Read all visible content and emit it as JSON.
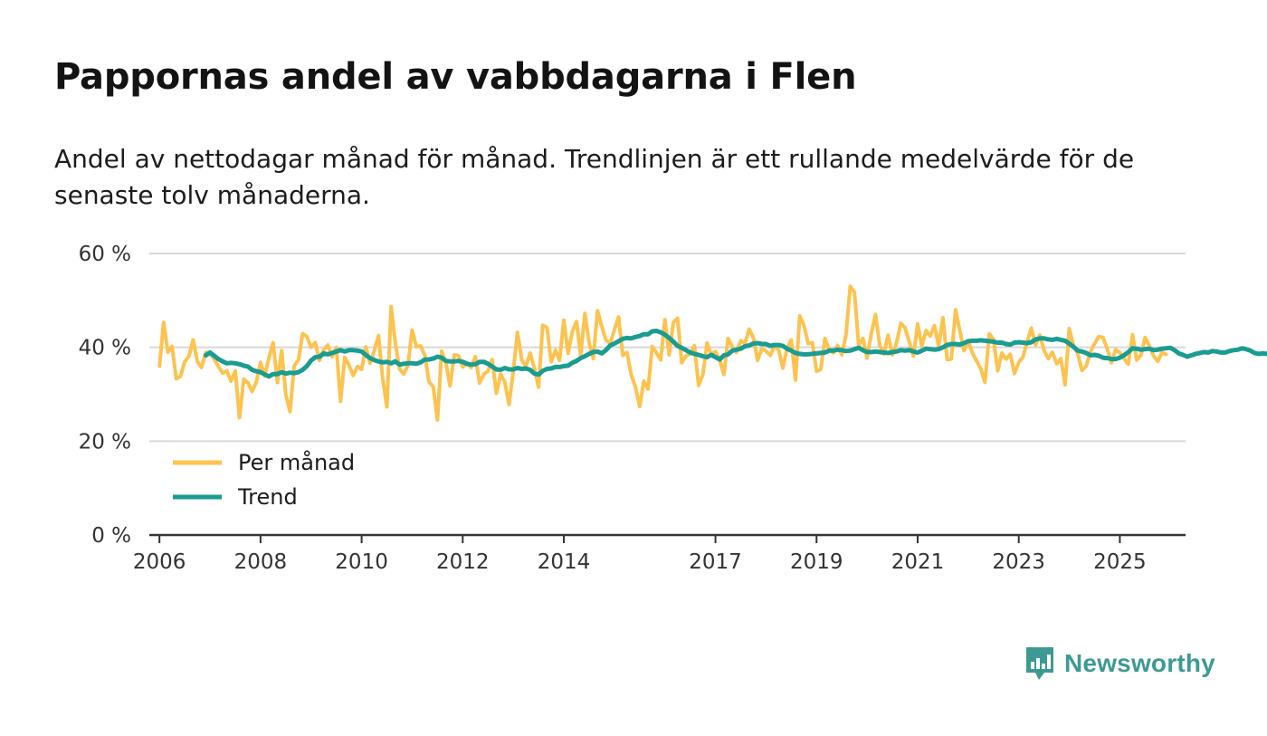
{
  "title": "Pappornas andel av vabbdagarna i Flen",
  "subtitle": "Andel av nettodagar månad för månad. Trendlinjen är ett rullande medelvärde för de senaste tolv månaderna.",
  "brand": {
    "name": "Newsworthy",
    "color": "#3d9a93"
  },
  "chart_data": {
    "type": "line",
    "title": "Pappornas andel av vabbdagarna i Flen",
    "xlabel": "",
    "ylabel": "",
    "ylim": [
      0,
      60
    ],
    "xlim": [
      2005.8,
      2026.3
    ],
    "grid": true,
    "legend_position": "lower-left",
    "y_ticks": [
      0,
      20,
      40,
      60
    ],
    "y_tick_labels": [
      "0 %",
      "20 %",
      "40 %",
      "60 %"
    ],
    "x_ticks": [
      2006,
      2008,
      2010,
      2012,
      2014,
      2017,
      2019,
      2021,
      2023,
      2025
    ],
    "x_tick_labels": [
      "2006",
      "2008",
      "2010",
      "2012",
      "2014",
      "2017",
      "2019",
      "2021",
      "2023",
      "2025"
    ],
    "series": [
      {
        "name": "Per månad",
        "color": "#fdc350",
        "x_start": 2006.0,
        "x_step": 0.0833333,
        "values": [
          36.0,
          45.3,
          39.0,
          40.2,
          33.3,
          33.8,
          36.9,
          38.1,
          41.6,
          37.0,
          35.7,
          38.9,
          38.7,
          37.5,
          35.9,
          34.5,
          35.0,
          32.8,
          35.0,
          25.0,
          33.2,
          32.5,
          30.6,
          32.6,
          36.8,
          33.9,
          37.8,
          41.0,
          32.5,
          39.3,
          29.9,
          26.3,
          36.1,
          37.3,
          42.9,
          42.3,
          40.0,
          41.0,
          37.2,
          39.5,
          40.5,
          38.0,
          40.0,
          28.5,
          37.9,
          36.2,
          34.0,
          35.9,
          35.3,
          40.1,
          36.6,
          39.2,
          42.5,
          33.3,
          27.3,
          48.7,
          41.0,
          35.4,
          34.3,
          36.2,
          43.7,
          40.1,
          40.3,
          38.3,
          32.6,
          31.6,
          24.5,
          39.2,
          36.7,
          31.8,
          38.4,
          38.2,
          35.8,
          36.6,
          35.7,
          38.0,
          32.4,
          34.3,
          34.9,
          37.4,
          30.2,
          34.3,
          32.6,
          27.8,
          34.9,
          43.2,
          37.3,
          35.9,
          38.8,
          35.6,
          31.5,
          44.7,
          44.2,
          36.9,
          39.4,
          37.2,
          45.8,
          38.7,
          43.3,
          45.5,
          38.3,
          47.2,
          41.0,
          37.6,
          47.8,
          44.5,
          41.6,
          40.8,
          43.7,
          46.5,
          38.3,
          38.9,
          34.1,
          31.6,
          27.4,
          32.8,
          31.1,
          40.2,
          38.8,
          37.3,
          45.9,
          38.4,
          45.3,
          46.2,
          36.7,
          38.2,
          38.6,
          40.4,
          31.9,
          34.1,
          40.9,
          38.5,
          39.1,
          37.4,
          34.2,
          41.9,
          40.1,
          38.9,
          41.4,
          40.8,
          43.9,
          42.1,
          37.2,
          39.7,
          39.2,
          38.3,
          40.3,
          39.5,
          35.6,
          39.8,
          41.6,
          33.0,
          46.7,
          44.7,
          40.8,
          41.0,
          34.9,
          35.3,
          41.9,
          39.5,
          38.8,
          40.4,
          38.4,
          42.7,
          53.0,
          51.7,
          40.4,
          41.9,
          37.7,
          43.0,
          47.0,
          40.4,
          38.6,
          42.6,
          38.4,
          41.0,
          45.1,
          44.2,
          41.2,
          38.1,
          45.0,
          40.3,
          43.6,
          42.4,
          44.6,
          40.2,
          46.3,
          37.4,
          37.5,
          48.0,
          43.6,
          39.3,
          41.3,
          38.8,
          37.1,
          35.4,
          32.5,
          42.9,
          41.7,
          35.0,
          38.8,
          37.5,
          38.5,
          34.4,
          36.8,
          37.9,
          41.2,
          44.1,
          40.5,
          42.6,
          39.4,
          37.6,
          38.9,
          36.5,
          37.6,
          32.0,
          44.0,
          40.3,
          38.7,
          35.1,
          36.0,
          39.0,
          40.8,
          42.3,
          42.1,
          39.7,
          36.7,
          39.5,
          38.9,
          37.6,
          36.4,
          42.7,
          37.3,
          38.3,
          42.1,
          40.3,
          38.2,
          37.0,
          38.9,
          38.5
        ]
      },
      {
        "name": "Trend",
        "color": "#1a9c90",
        "x_start": 2006.9167,
        "x_step": 0.0833333,
        "values": [
          38.3,
          38.9,
          38.2,
          37.5,
          37.0,
          36.6,
          36.7,
          36.6,
          36.4,
          36.1,
          35.9,
          35.2,
          34.9,
          34.7,
          34.2,
          33.8,
          34.3,
          34.3,
          34.7,
          34.4,
          34.6,
          34.5,
          34.7,
          35.2,
          36.0,
          37.2,
          37.9,
          38.0,
          38.7,
          38.5,
          38.8,
          39.1,
          39.4,
          39.1,
          39.4,
          39.4,
          39.3,
          39.1,
          38.4,
          37.7,
          37.3,
          37.0,
          36.8,
          36.9,
          36.6,
          37.0,
          36.3,
          36.5,
          36.6,
          36.6,
          36.5,
          36.8,
          37.4,
          37.4,
          37.6,
          38.0,
          37.8,
          37.1,
          37.0,
          37.0,
          37.1,
          36.9,
          36.5,
          36.3,
          36.4,
          36.9,
          36.9,
          36.5,
          35.9,
          35.3,
          35.2,
          35.6,
          35.3,
          35.3,
          35.6,
          35.4,
          35.5,
          35.2,
          34.4,
          34.2,
          35.0,
          35.4,
          35.5,
          35.8,
          35.8,
          36.0,
          36.1,
          36.7,
          37.1,
          37.7,
          38.1,
          38.6,
          39.0,
          39.1,
          38.7,
          39.4,
          40.4,
          40.8,
          41.3,
          41.8,
          42.0,
          41.9,
          42.2,
          42.4,
          42.8,
          42.8,
          43.4,
          43.5,
          43.2,
          42.7,
          42.0,
          41.2,
          40.3,
          39.9,
          39.4,
          38.9,
          38.6,
          38.4,
          38.1,
          37.9,
          38.4,
          37.9,
          37.4,
          38.3,
          38.5,
          39.3,
          39.5,
          39.7,
          40.2,
          40.4,
          40.8,
          40.9,
          40.7,
          40.7,
          40.3,
          40.5,
          40.5,
          40.3,
          39.7,
          39.3,
          38.8,
          38.6,
          38.5,
          38.5,
          38.6,
          38.7,
          38.8,
          38.9,
          39.3,
          39.3,
          39.5,
          39.4,
          39.2,
          39.3,
          39.6,
          39.9,
          39.4,
          39.0,
          39.0,
          39.1,
          39.0,
          38.9,
          38.8,
          39.0,
          39.1,
          39.4,
          39.3,
          39.4,
          39.1,
          38.9,
          39.3,
          39.7,
          39.6,
          39.5,
          39.6,
          40.0,
          40.5,
          40.7,
          40.7,
          40.6,
          40.9,
          41.3,
          41.4,
          41.4,
          41.5,
          41.4,
          41.3,
          41.2,
          41.0,
          41.0,
          40.7,
          40.6,
          41.0,
          41.1,
          41.0,
          40.9,
          41.1,
          41.7,
          41.9,
          41.9,
          41.7,
          41.6,
          41.8,
          41.6,
          41.4,
          40.8,
          40.1,
          39.3,
          39.1,
          38.8,
          38.3,
          38.4,
          38.2,
          37.8,
          37.7,
          37.5,
          37.5,
          37.8,
          38.3,
          39.0,
          39.8,
          39.7,
          39.5,
          39.6,
          39.7,
          39.4,
          39.5,
          39.7,
          39.8,
          39.9,
          39.4,
          38.7,
          38.4,
          38.0,
          38.3,
          38.6,
          38.8,
          39.0,
          38.9,
          39.2,
          39.1,
          38.9,
          38.9,
          39.2,
          39.4,
          39.5,
          39.8,
          39.6,
          39.3,
          38.8,
          38.6,
          38.7,
          38.6
        ]
      }
    ]
  }
}
